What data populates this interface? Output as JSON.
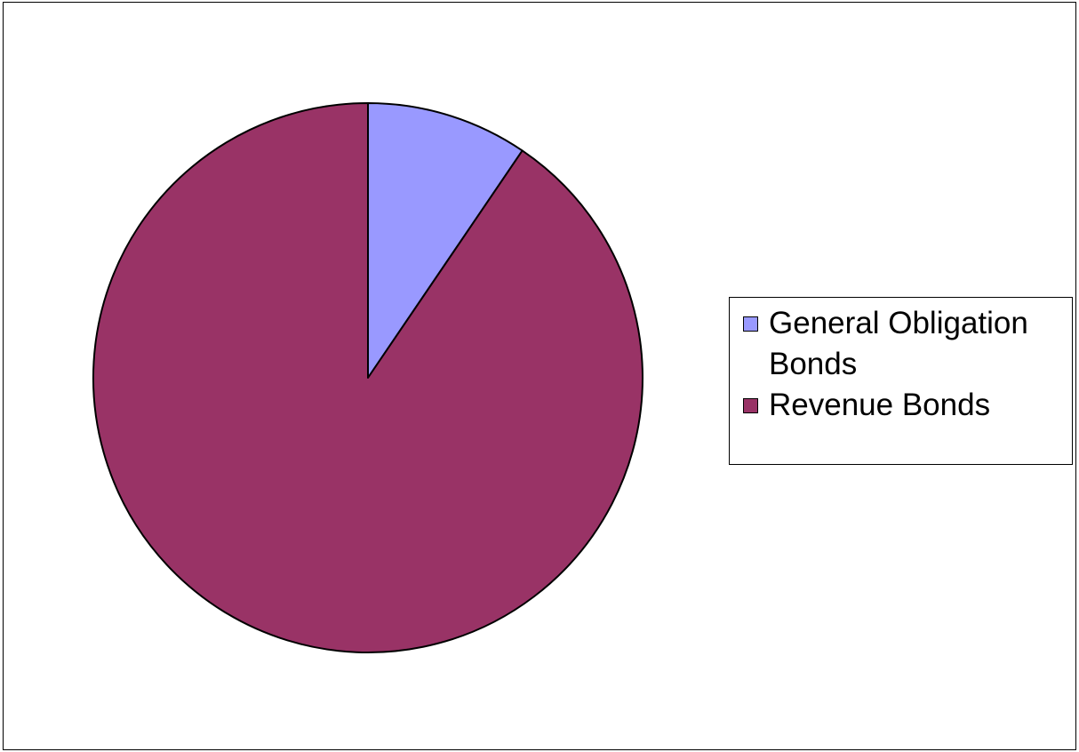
{
  "chart_data": {
    "type": "pie",
    "title": "",
    "start_angle_deg": 0,
    "direction": "clockwise",
    "legend_position": "right",
    "slices": [
      {
        "label": "General Obligation Bonds",
        "value": 9.5,
        "color": "#9999ff"
      },
      {
        "label": "Revenue Bonds",
        "value": 90.5,
        "color": "#993366"
      }
    ]
  }
}
